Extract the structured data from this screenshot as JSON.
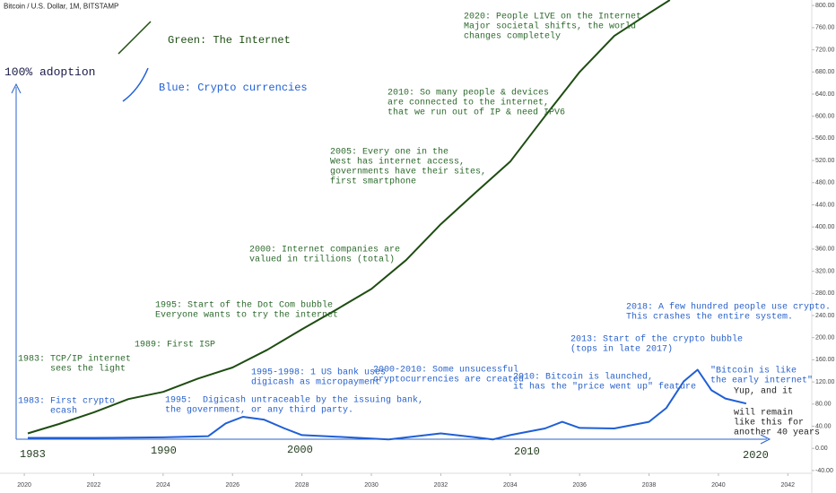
{
  "chart_data": {
    "type": "line",
    "title": "Bitcoin / U.S. Dollar, 1M, BITSTAMP",
    "y_label": "100% adoption",
    "xlim": [
      2019.3,
      2042.69
    ],
    "xticks": [
      2020,
      2022,
      2024,
      2026,
      2028,
      2030,
      2032,
      2034,
      2036,
      2038,
      2040,
      2042
    ],
    "ylim": [
      -45,
      810
    ],
    "yticks": [
      {
        "value": -40,
        "label": "-40.00"
      },
      {
        "value": 0,
        "label": "0.00"
      },
      {
        "value": 40,
        "label": "40.00"
      },
      {
        "value": 80,
        "label": "80.00"
      },
      {
        "value": 120,
        "label": "120.00"
      },
      {
        "value": 160,
        "label": "160.00"
      },
      {
        "value": 200,
        "label": "200.00"
      },
      {
        "value": 240,
        "label": "240.00"
      },
      {
        "value": 280,
        "label": "280.00"
      },
      {
        "value": 320,
        "label": "320.00"
      },
      {
        "value": 360,
        "label": "360.00"
      },
      {
        "value": 400,
        "label": "400.00"
      },
      {
        "value": 440,
        "label": "440.00"
      },
      {
        "value": 480,
        "label": "480.00"
      },
      {
        "value": 520,
        "label": "520.00"
      },
      {
        "value": 560,
        "label": "560.00"
      },
      {
        "value": 600,
        "label": "600.00"
      },
      {
        "value": 640,
        "label": "640.00"
      },
      {
        "value": 680,
        "label": "680.00"
      },
      {
        "value": 720,
        "label": "720.00"
      },
      {
        "value": 760,
        "label": "760.00"
      },
      {
        "value": 800,
        "label": "800.00"
      }
    ],
    "series": [
      {
        "name": "Green: The Internet",
        "color": "#1e4d12",
        "x": [
          2020.1,
          2021,
          2022,
          2023,
          2024,
          2025,
          2026,
          2027,
          2028,
          2029,
          2030,
          2031,
          2032,
          2033,
          2034,
          2035,
          2036,
          2037,
          2038,
          2038.6
        ],
        "values": [
          27,
          44,
          65,
          89,
          102,
          126,
          146,
          178,
          215,
          251,
          288,
          340,
          405,
          462,
          518,
          600,
          680,
          745,
          786,
          810
        ]
      },
      {
        "name": "Blue: Crypto currencies",
        "color": "#1f5fd6",
        "x": [
          2020.1,
          2022,
          2024,
          2025.3,
          2025.8,
          2026.3,
          2026.9,
          2027.5,
          2028,
          2029,
          2030.5,
          2032,
          2033,
          2033.5,
          2034,
          2035,
          2035.5,
          2036,
          2037,
          2038,
          2038.5,
          2039,
          2039.4,
          2039.8,
          2040.2,
          2040.8
        ],
        "values": [
          19,
          19,
          20,
          22,
          45,
          57,
          52,
          36,
          24,
          21,
          16,
          27,
          20,
          16,
          24,
          36,
          48,
          37,
          36,
          48,
          73,
          121,
          142,
          105,
          90,
          81
        ]
      }
    ],
    "legend_marks": true,
    "annotations": [
      {
        "color": "#2d6a2d",
        "lines": [
          "2020: People LIVE on the Internet",
          "Major societal shifts, the world",
          "changes completely"
        ]
      },
      {
        "color": "#2d6a2d",
        "lines": [
          "2010: So many people & devices",
          "are connected to the internet,",
          "that we run out of IP & need IPV6"
        ]
      },
      {
        "color": "#2d6a2d",
        "lines": [
          "2005: Every one in the",
          "West has internet access,",
          "governments have their sites,",
          "first smartphone"
        ]
      },
      {
        "color": "#2d6a2d",
        "lines": [
          "2000: Internet companies are",
          "valued in trillions (total)"
        ]
      },
      {
        "color": "#2d6a2d",
        "lines": [
          "1995: Start of the Dot Com bubble",
          "Everyone wants to try the internet"
        ]
      },
      {
        "color": "#2d6a2d",
        "lines": [
          "1989: First ISP"
        ]
      },
      {
        "color": "#2d6a2d",
        "lines": [
          "1983: TCP/IP internet",
          "      sees the light"
        ]
      },
      {
        "color": "#2962cc",
        "lines": [
          "1983: First crypto",
          "      ecash"
        ]
      },
      {
        "color": "#2962cc",
        "lines": [
          "1995:  Digicash untraceable by the issuing bank,",
          "the government, or any third party."
        ]
      },
      {
        "color": "#2962cc",
        "lines": [
          "1995-1998: 1 US bank uses",
          "digicash as micropayment"
        ]
      },
      {
        "color": "#2962cc",
        "lines": [
          "2000-2010: Some unsucessful",
          "cryptocurrencies are created"
        ]
      },
      {
        "color": "#2962cc",
        "lines": [
          "2010: Bitcoin is launched,",
          "it has the \"price went up\" feature"
        ]
      },
      {
        "color": "#2962cc",
        "lines": [
          "2013: Start of the crypto bubble",
          "(tops in late 2017)"
        ]
      },
      {
        "color": "#2962cc",
        "lines": [
          "2018: A few hundred people use crypto.",
          "This crashes the entire system."
        ]
      },
      {
        "color": "#2962cc",
        "lines": [
          "\"Bitcoin is like",
          "the early internet\""
        ]
      },
      {
        "color": "#222222",
        "lines": [
          "Yup, and it"
        ]
      },
      {
        "color": "#222222",
        "lines": [
          "will remain",
          "like this for",
          "another 40 years"
        ]
      }
    ],
    "decade_labels": [
      "1983",
      "1990",
      "2000",
      "2010",
      "2020"
    ]
  }
}
